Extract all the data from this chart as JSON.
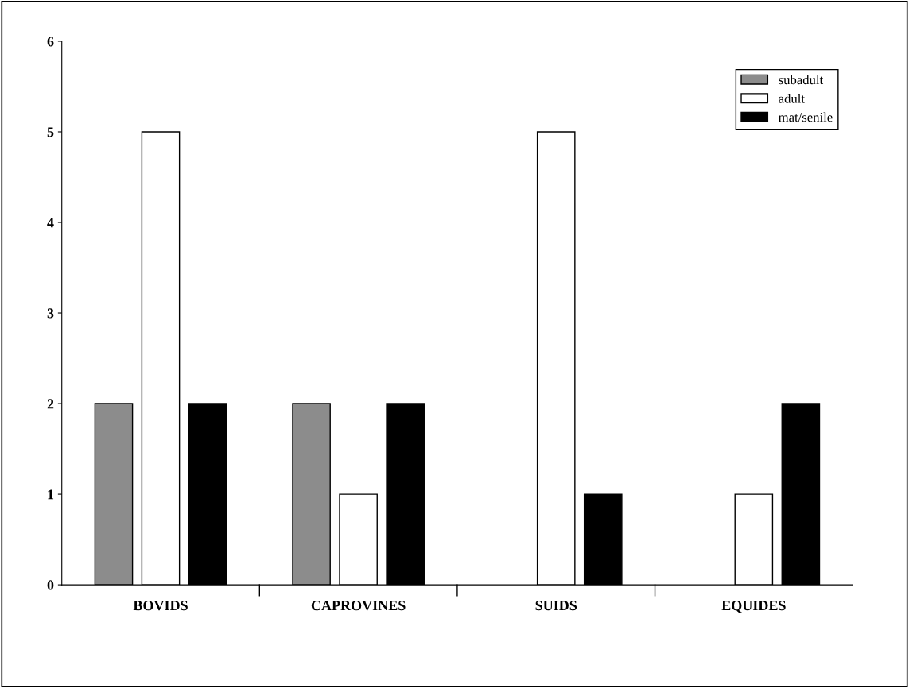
{
  "chart_data": {
    "type": "bar",
    "categories": [
      "BOVIDS",
      "CAPROVINES",
      "SUIDS",
      "EQUIDES"
    ],
    "series": [
      {
        "name": "subadult",
        "color": "#8c8c8c",
        "values": [
          2,
          2,
          null,
          null
        ]
      },
      {
        "name": "adult",
        "color": "#ffffff",
        "values": [
          5,
          1,
          5,
          1
        ]
      },
      {
        "name": "mat/senile",
        "color": "#000000",
        "values": [
          2,
          2,
          1,
          2
        ]
      }
    ],
    "ylim": [
      0,
      6
    ],
    "yticks": [
      0,
      1,
      2,
      3,
      4,
      5,
      6
    ],
    "grid": false,
    "legend": "top right"
  }
}
